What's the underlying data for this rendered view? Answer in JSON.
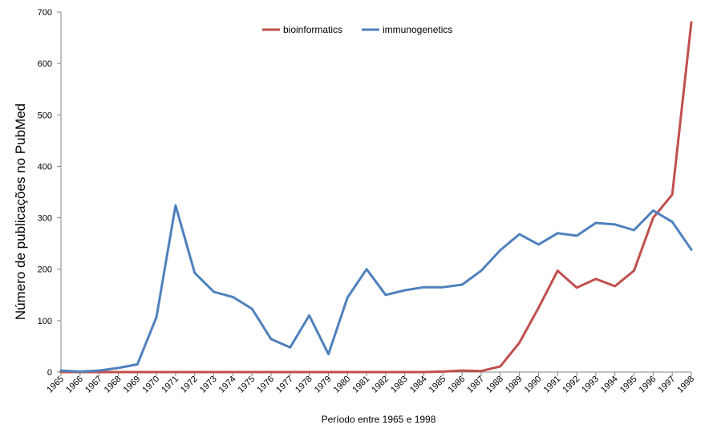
{
  "chart_data": {
    "type": "line",
    "title": "",
    "xlabel": "Período entre 1965 e 1998",
    "ylabel": "Número de publicações no PubMed",
    "ylim": [
      0,
      700
    ],
    "yticks": [
      0,
      100,
      200,
      300,
      400,
      500,
      600,
      700
    ],
    "legend_position": "top-center",
    "grid": false,
    "categories": [
      "1965",
      "1966",
      "1967",
      "1968",
      "1969",
      "1970",
      "1971",
      "1972",
      "1973",
      "1974",
      "1975",
      "1976",
      "1977",
      "1978",
      "1979",
      "1980",
      "1981",
      "1982",
      "1983",
      "1984",
      "1985",
      "1986",
      "1987",
      "1988",
      "1989",
      "1990",
      "1991",
      "1992",
      "1993",
      "1994",
      "1995",
      "1996",
      "1997",
      "1998"
    ],
    "series": [
      {
        "name": "bioinformatics",
        "color": "#c0504d",
        "values": [
          0,
          0,
          0,
          0,
          0,
          0,
          0,
          0,
          0,
          0,
          0,
          0,
          0,
          0,
          0,
          0,
          0,
          0,
          0,
          0,
          1,
          3,
          2,
          11,
          57,
          125,
          197,
          164,
          181,
          167,
          197,
          300,
          345,
          680
        ]
      },
      {
        "name": "immunogenetics",
        "color": "#4f81bd",
        "values": [
          3,
          1,
          3,
          8,
          15,
          107,
          324,
          193,
          156,
          146,
          123,
          64,
          48,
          110,
          35,
          145,
          200,
          150,
          159,
          165,
          165,
          170,
          197,
          237,
          268,
          248,
          270,
          265,
          290,
          287,
          276,
          314,
          292,
          238
        ]
      }
    ]
  }
}
